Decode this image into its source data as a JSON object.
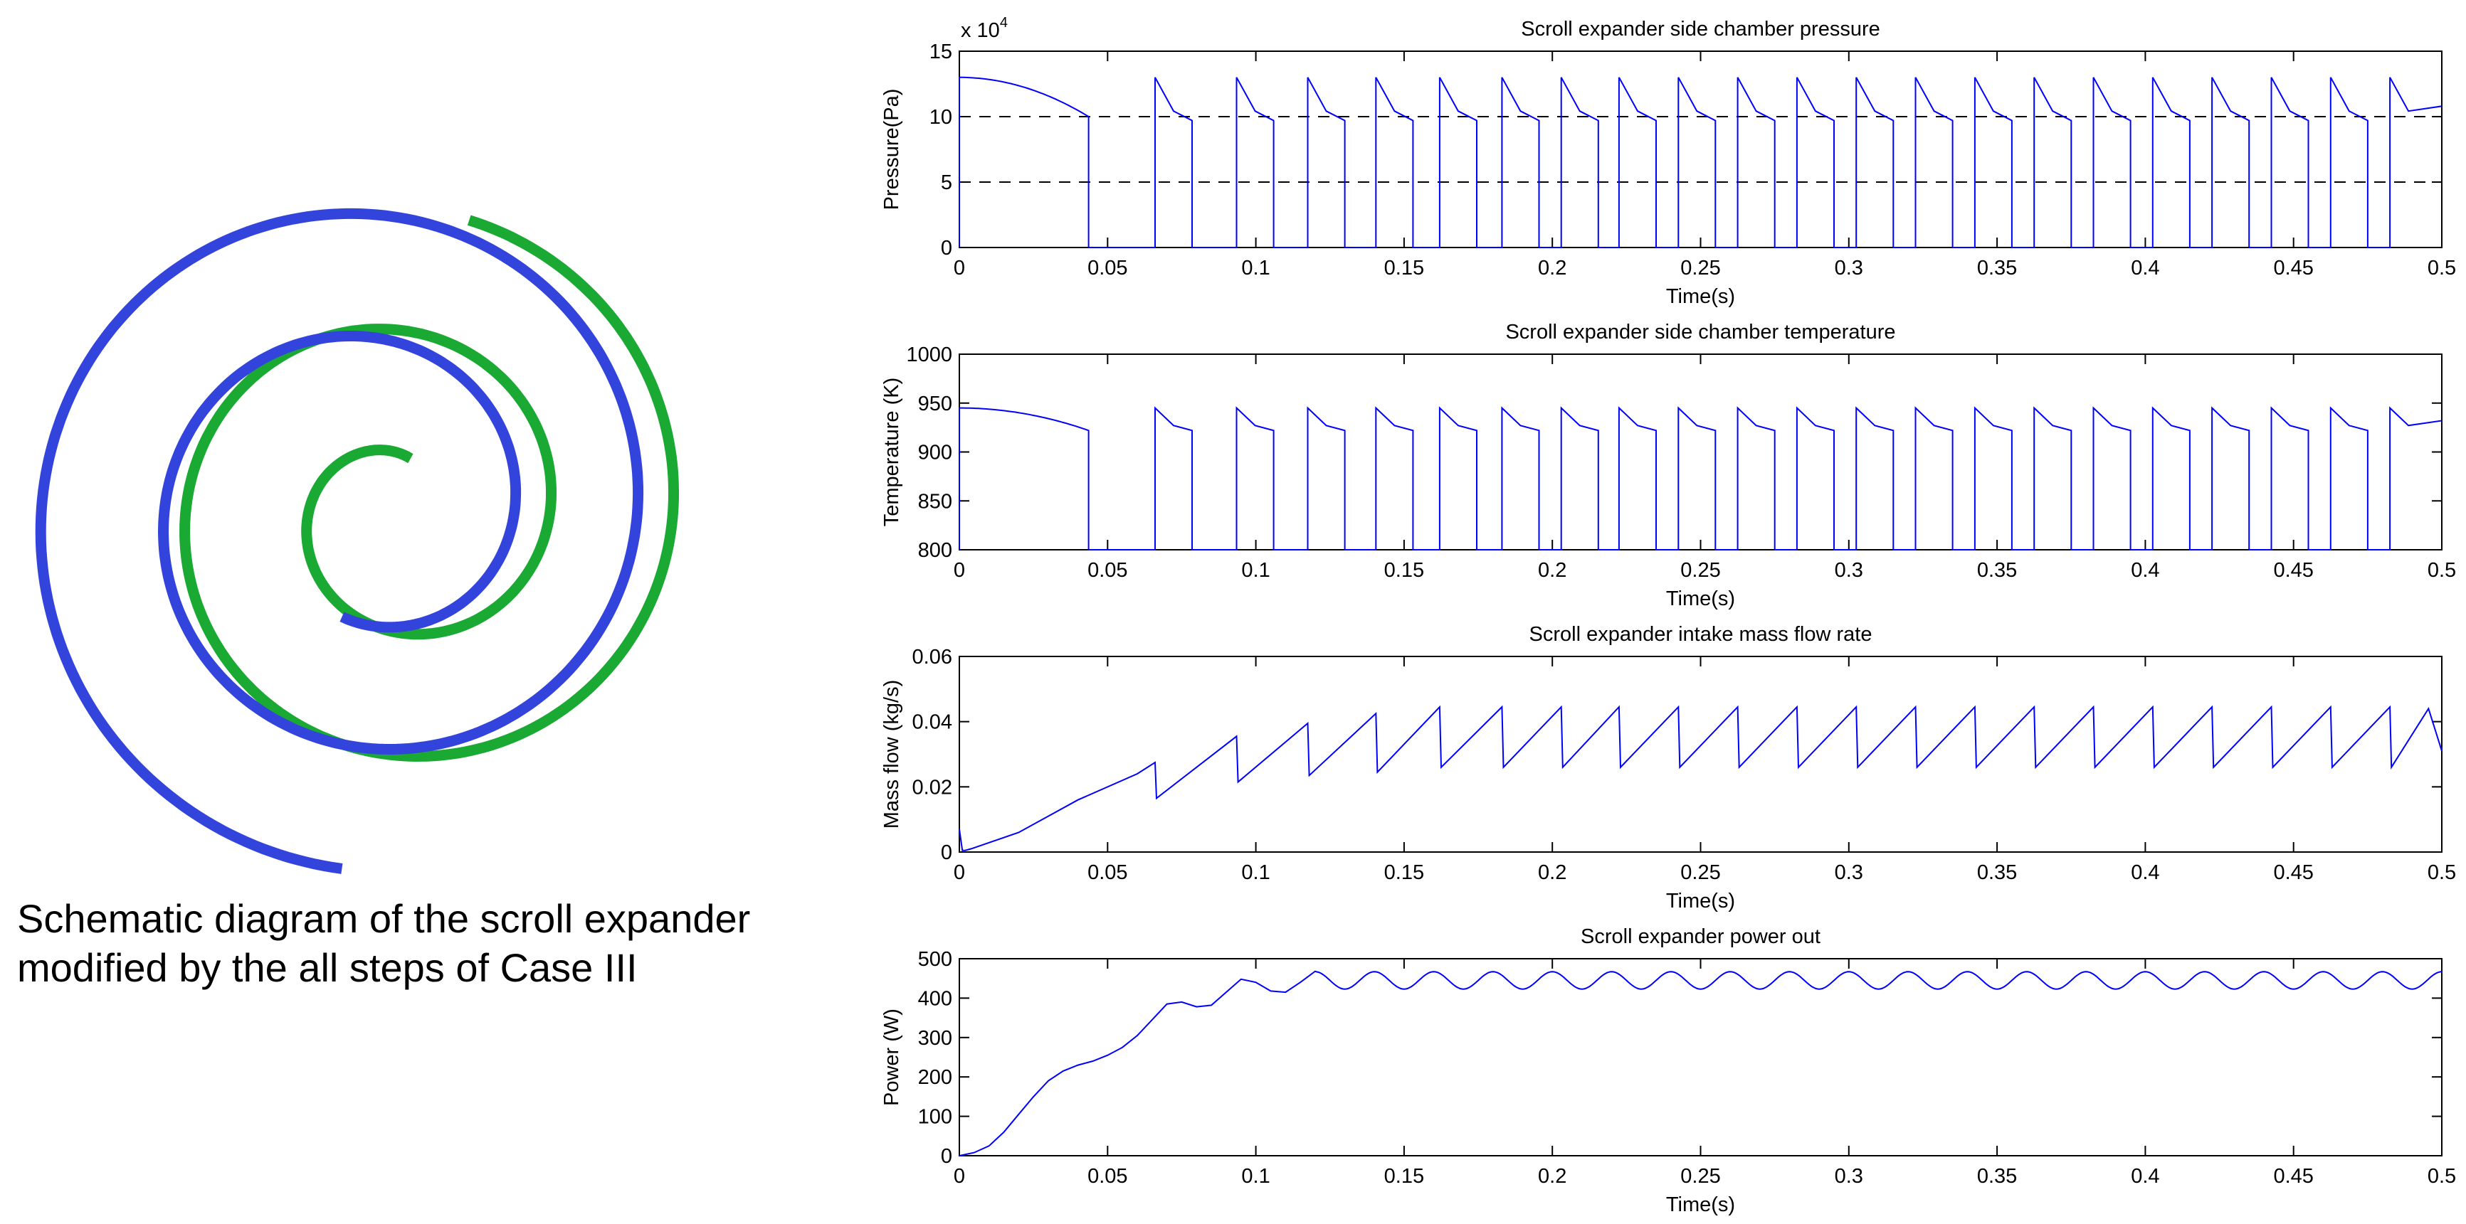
{
  "diagram": {
    "caption_line1": "Schematic diagram of the scroll expander",
    "caption_line2": "modified by the all steps of Case III",
    "colors": {
      "scroll_a": "#3344dd",
      "scroll_b": "#1aaa33"
    }
  },
  "chart_data": [
    {
      "type": "line",
      "title": "Scroll expander side chamber pressure",
      "xlabel": "Time(s)",
      "ylabel": "Pressure(Pa)",
      "exponent_label": "x 10",
      "exponent_power": "4",
      "xlim": [
        0,
        0.5
      ],
      "ylim": [
        0,
        15
      ],
      "xticks": [
        0,
        0.05,
        0.1,
        0.15,
        0.2,
        0.25,
        0.3,
        0.35,
        0.4,
        0.45,
        0.5
      ],
      "xtick_labels": [
        "0",
        "0.05",
        "0.1",
        "0.15",
        "0.2",
        "0.25",
        "0.3",
        "0.35",
        "0.4",
        "0.45",
        "0.5"
      ],
      "yticks": [
        0,
        5,
        10,
        15
      ],
      "ytick_labels": [
        "0",
        "5",
        "10",
        "15"
      ],
      "reference_lines": [
        5,
        10
      ],
      "signal": {
        "pattern": "pulsed",
        "initial_start": [
          0,
          13
        ],
        "initial_end": [
          0.0436,
          10
        ],
        "cycle_starts": [
          0.066,
          0.0935,
          0.1175,
          0.1405,
          0.162,
          0.183,
          0.203,
          0.2225,
          0.2425,
          0.2625,
          0.2825,
          0.3025,
          0.3225,
          0.3425,
          0.3625,
          0.3825,
          0.4025,
          0.4225,
          0.4425,
          0.4625,
          0.4825
        ],
        "peak": 13,
        "end_value": 9.7,
        "cycle_open_duration": 0.0125,
        "final_value_at_0_5": 10.8
      },
      "color": "#0000ff"
    },
    {
      "type": "line",
      "title": "Scroll expander side chamber temperature",
      "xlabel": "Time(s)",
      "ylabel": "Temperature (K)",
      "xlim": [
        0,
        0.5
      ],
      "ylim": [
        800,
        1000
      ],
      "xticks": [
        0,
        0.05,
        0.1,
        0.15,
        0.2,
        0.25,
        0.3,
        0.35,
        0.4,
        0.45,
        0.5
      ],
      "xtick_labels": [
        "0",
        "0.05",
        "0.1",
        "0.15",
        "0.2",
        "0.25",
        "0.3",
        "0.35",
        "0.4",
        "0.45",
        "0.5"
      ],
      "yticks": [
        800,
        850,
        900,
        950,
        1000
      ],
      "ytick_labels": [
        "800",
        "850",
        "900",
        "950",
        "1000"
      ],
      "signal": {
        "pattern": "pulsed",
        "initial_start": [
          0,
          945
        ],
        "initial_end": [
          0.0436,
          922
        ],
        "cycle_starts": [
          0.066,
          0.0935,
          0.1175,
          0.1405,
          0.162,
          0.183,
          0.203,
          0.2225,
          0.2425,
          0.2625,
          0.2825,
          0.3025,
          0.3225,
          0.3425,
          0.3625,
          0.3825,
          0.4025,
          0.4225,
          0.4425,
          0.4625,
          0.4825
        ],
        "peak": 945,
        "end_value": 922,
        "cycle_open_duration": 0.0125,
        "final_value_at_0_5": 932
      },
      "color": "#0000ff"
    },
    {
      "type": "line",
      "title": "Scroll expander intake mass flow rate",
      "xlabel": "Time(s)",
      "ylabel": "Mass flow (kg/s)",
      "xlim": [
        0,
        0.5
      ],
      "ylim": [
        0,
        0.06
      ],
      "xticks": [
        0,
        0.05,
        0.1,
        0.15,
        0.2,
        0.25,
        0.3,
        0.35,
        0.4,
        0.45,
        0.5
      ],
      "xtick_labels": [
        "0",
        "0.05",
        "0.1",
        "0.15",
        "0.2",
        "0.25",
        "0.3",
        "0.35",
        "0.4",
        "0.45",
        "0.5"
      ],
      "yticks": [
        0,
        0.02,
        0.04,
        0.06
      ],
      "ytick_labels": [
        "0",
        "0.02",
        "0.04",
        "0.06"
      ],
      "x": [
        0,
        0.001,
        0.002,
        0.004,
        0.02,
        0.04,
        0.06,
        0.066,
        0.0665,
        0.0935,
        0.094,
        0.1175,
        0.118,
        0.1405,
        0.141,
        0.162,
        0.1625,
        0.183,
        0.1835,
        0.203,
        0.2035,
        0.2225,
        0.223,
        0.2425,
        0.243,
        0.2625,
        0.263,
        0.2825,
        0.283,
        0.3025,
        0.303,
        0.3225,
        0.323,
        0.3425,
        0.343,
        0.3625,
        0.363,
        0.3825,
        0.383,
        0.4025,
        0.403,
        0.4225,
        0.423,
        0.4425,
        0.443,
        0.4625,
        0.463,
        0.4825,
        0.483,
        0.4955,
        0.5
      ],
      "y": [
        0.007,
        0.0005,
        0.0005,
        0.001,
        0.006,
        0.016,
        0.024,
        0.0275,
        0.0165,
        0.0355,
        0.0215,
        0.0395,
        0.0235,
        0.0425,
        0.0245,
        0.0445,
        0.026,
        0.0445,
        0.026,
        0.0445,
        0.026,
        0.0445,
        0.026,
        0.0445,
        0.026,
        0.0445,
        0.026,
        0.0445,
        0.026,
        0.0445,
        0.026,
        0.0445,
        0.026,
        0.0445,
        0.026,
        0.0445,
        0.026,
        0.0445,
        0.026,
        0.0445,
        0.026,
        0.0445,
        0.026,
        0.0445,
        0.026,
        0.0445,
        0.026,
        0.0445,
        0.026,
        0.044,
        0.031
      ],
      "color": "#0000ff"
    },
    {
      "type": "line",
      "title": "Scroll expander power out",
      "xlabel": "Time(s)",
      "ylabel": "Power (W)",
      "xlim": [
        0,
        0.5
      ],
      "ylim": [
        0,
        500
      ],
      "xticks": [
        0,
        0.05,
        0.1,
        0.15,
        0.2,
        0.25,
        0.3,
        0.35,
        0.4,
        0.45,
        0.5
      ],
      "xtick_labels": [
        "0",
        "0.05",
        "0.1",
        "0.15",
        "0.2",
        "0.25",
        "0.3",
        "0.35",
        "0.4",
        "0.45",
        "0.5"
      ],
      "yticks": [
        0,
        100,
        200,
        300,
        400,
        500
      ],
      "ytick_labels": [
        "0",
        "100",
        "200",
        "300",
        "400",
        "500"
      ],
      "x": [
        0,
        0.005,
        0.01,
        0.015,
        0.02,
        0.025,
        0.03,
        0.035,
        0.04,
        0.045,
        0.05,
        0.055,
        0.06,
        0.065,
        0.07,
        0.075,
        0.08,
        0.085,
        0.09,
        0.095,
        0.1,
        0.105,
        0.11,
        0.115,
        0.12
      ],
      "y": [
        0,
        8,
        25,
        60,
        105,
        150,
        190,
        215,
        230,
        240,
        255,
        275,
        305,
        345,
        385,
        390,
        378,
        382,
        415,
        448,
        440,
        418,
        415,
        440,
        468
      ],
      "oscillation": {
        "from": 0.12,
        "mean": 445,
        "amplitude": 22,
        "period": 0.02
      },
      "color": "#0000ff"
    }
  ]
}
